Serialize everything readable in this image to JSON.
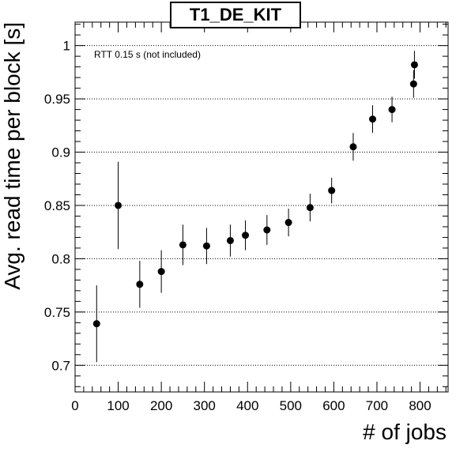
{
  "chart_data": {
    "type": "scatter",
    "title": "T1_DE_KIT",
    "xlabel": "# of jobs",
    "ylabel": "Avg. read time per block [s]",
    "annotation": "RTT 0.15 s (not included)",
    "xlim": [
      0,
      865
    ],
    "ylim": [
      0.675,
      1.022
    ],
    "x_ticks": [
      0,
      100,
      200,
      300,
      400,
      500,
      600,
      700,
      800
    ],
    "y_ticks": [
      0.7,
      0.75,
      0.8,
      0.85,
      0.9,
      0.95,
      1
    ],
    "y_tick_labels": [
      "0.7",
      "0.75",
      "0.8",
      "0.85",
      "0.9",
      "0.95",
      "1"
    ],
    "grid": "horizontal dotted",
    "series": [
      {
        "x": [
          50,
          100,
          150,
          200,
          250,
          305,
          360,
          395,
          445,
          495,
          545,
          595,
          645,
          690,
          735,
          785,
          787
        ],
        "y": [
          0.739,
          0.85,
          0.776,
          0.788,
          0.813,
          0.812,
          0.817,
          0.822,
          0.827,
          0.834,
          0.848,
          0.864,
          0.905,
          0.931,
          0.94,
          0.964,
          0.982
        ],
        "err": [
          0.036,
          0.041,
          0.022,
          0.02,
          0.019,
          0.017,
          0.015,
          0.014,
          0.014,
          0.013,
          0.013,
          0.012,
          0.013,
          0.013,
          0.012,
          0.013,
          0.013
        ]
      }
    ]
  }
}
